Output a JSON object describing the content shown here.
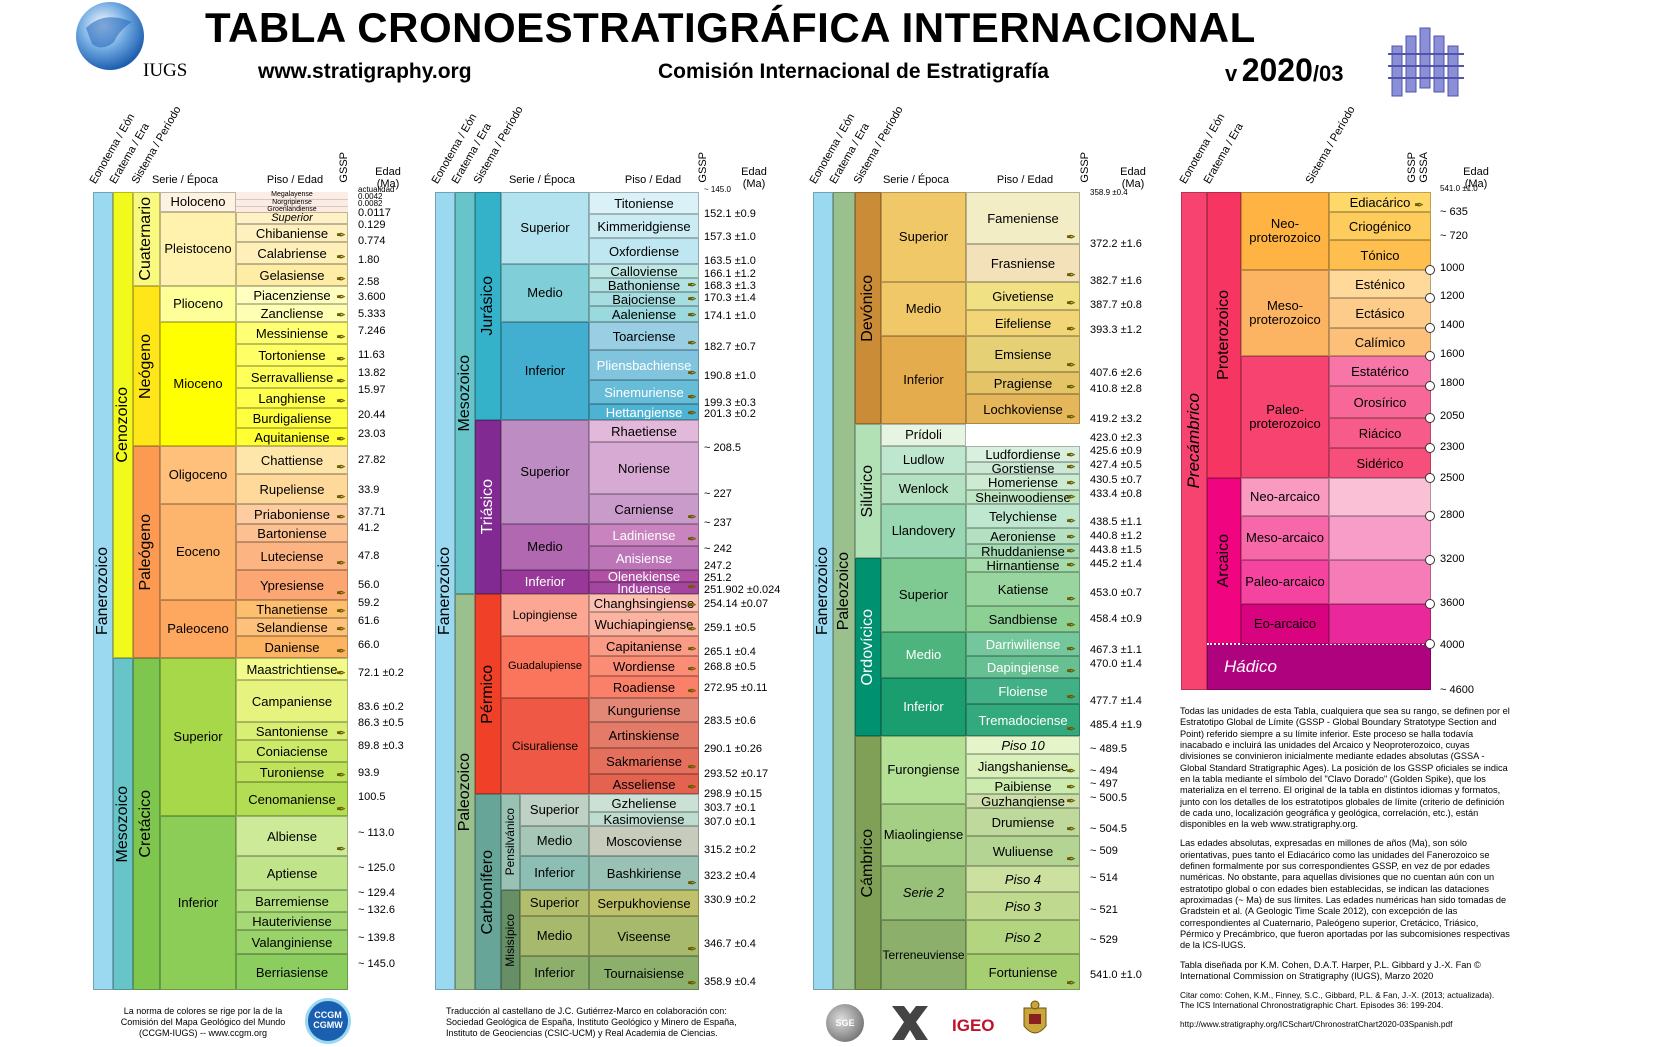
{
  "header": {
    "title": "TABLA CRONOESTRATIGRÁFICA INTERNACIONAL",
    "url": "www.stratigraphy.org",
    "commission": "Comisión Internacional de Estratigrafía",
    "version_prefix": "v",
    "version_year": "2020",
    "version_suffix": "/03",
    "logo_text": "IUGS"
  },
  "col_headers": {
    "eonothem": "Eonotema / Eón",
    "erathem": "Eratema / Era",
    "system": "Sistema / Período",
    "series": "Serie / Época",
    "stage": "Piso / Edad",
    "gssp": "GSSP",
    "gssa": "GSSA",
    "age": "Edad (Ma)"
  },
  "col1": {
    "eon": "Fanerozoico",
    "eras": [
      "Cenozoico",
      "Mesozoico"
    ],
    "systems": [
      "Cuaternario",
      "Neógeno",
      "Paleógeno",
      "Cretácico"
    ],
    "series": [
      "Holoceno",
      "Pleistoceno",
      "Plioceno",
      "Mioceno",
      "Oligoceno",
      "Eoceno",
      "Paleoceno",
      "Superior",
      "Inferior"
    ],
    "holocene_sub": [
      "Megalayense",
      "Norgripiense",
      "Groenlandiense"
    ],
    "stages": [
      "Superior",
      "Chibaniense",
      "Calabriense",
      "Gelasiense",
      "Piacenziense",
      "Zancliense",
      "Messiniense",
      "Tortoniense",
      "Serravalliense",
      "Langhiense",
      "Burdigaliense",
      "Aquitaniense",
      "Chattiense",
      "Rupeliense",
      "Priaboniense",
      "Bartoniense",
      "Luteciense",
      "Ypresiense",
      "Thanetiense",
      "Selandiense",
      "Daniense",
      "Maastrichtiense",
      "Campaniense",
      "Santoniense",
      "Coniaciense",
      "Turoniense",
      "Cenomaniense",
      "Albiense",
      "Aptiense",
      "Barremiense",
      "Hauteriviense",
      "Valanginiense",
      "Berriasiense"
    ],
    "ages": [
      "actualidad",
      "0.0042",
      "0.0082",
      "0.0117",
      "0.129",
      "0.774",
      "1.80",
      "2.58",
      "3.600",
      "5.333",
      "7.246",
      "11.63",
      "13.82",
      "15.97",
      "20.44",
      "23.03",
      "27.82",
      "33.9",
      "37.71",
      "41.2",
      "47.8",
      "56.0",
      "59.2",
      "61.6",
      "66.0",
      "72.1 ±0.2",
      "83.6 ±0.2",
      "86.3 ±0.5",
      "89.8 ±0.3",
      "93.9",
      "100.5",
      "~ 113.0",
      "~ 125.0",
      "~ 129.4",
      "~ 132.6",
      "~ 139.8",
      "~ 145.0"
    ]
  },
  "col2": {
    "eon": "Fanerozoico",
    "eras": [
      "Mesozoico",
      "Paleozoico"
    ],
    "systems": [
      "Jurásico",
      "Triásico",
      "Pérmico",
      "Carbonífero"
    ],
    "subsystems": [
      "Pensilvánico",
      "Misisípico"
    ],
    "series": [
      "Superior",
      "Medio",
      "Inferior",
      "Superior",
      "Medio",
      "Inferior",
      "Lopingiense",
      "Guadalupiense",
      "Cisuraliense",
      "Superior",
      "Medio",
      "Inferior",
      "Superior",
      "Medio",
      "Inferior"
    ],
    "stages": [
      "Titoniense",
      "Kimmeridgiense",
      "Oxfordiense",
      "Calloviense",
      "Bathoniense",
      "Bajociense",
      "Aaleniense",
      "Toarciense",
      "Pliensbachiense",
      "Sinemuriense",
      "Hettangiense",
      "Rhaetiense",
      "Noriense",
      "Carniense",
      "Ladiniense",
      "Anisiense",
      "Olenekiense",
      "Induense",
      "Changhsingiense",
      "Wuchiapingiense",
      "Capitaniense",
      "Wordiense",
      "Roadiense",
      "Kunguriense",
      "Artinskiense",
      "Sakmariense",
      "Asseliense",
      "Gzheliense",
      "Kasimoviense",
      "Moscoviense",
      "Bashkiriense",
      "Serpukhoviense",
      "Viseense",
      "Tournaisiense"
    ],
    "ages": [
      "~ 145.0",
      "152.1 ±0.9",
      "157.3 ±1.0",
      "163.5 ±1.0",
      "166.1 ±1.2",
      "168.3 ±1.3",
      "170.3 ±1.4",
      "174.1 ±1.0",
      "182.7 ±0.7",
      "190.8 ±1.0",
      "199.3 ±0.3",
      "201.3 ±0.2",
      "~ 208.5",
      "~ 227",
      "~ 237",
      "~ 242",
      "247.2",
      "251.2",
      "251.902 ±0.024",
      "254.14 ±0.07",
      "259.1 ±0.5",
      "265.1 ±0.4",
      "268.8 ±0.5",
      "272.95 ±0.11",
      "283.5 ±0.6",
      "290.1 ±0.26",
      "293.52 ±0.17",
      "298.9 ±0.15",
      "303.7 ±0.1",
      "307.0 ±0.1",
      "315.2 ±0.2",
      "323.2 ±0.4",
      "330.9 ±0.2",
      "346.7 ±0.4",
      "358.9 ±0.4"
    ]
  },
  "col3": {
    "eon": "Fanerozoico",
    "era": "Paleozoico",
    "systems": [
      "Devónico",
      "Silúrico",
      "Ordovícico",
      "Cámbrico"
    ],
    "series": [
      "Superior",
      "Medio",
      "Inferior",
      "Prídoli",
      "Ludlow",
      "Wenlock",
      "Llandovery",
      "Superior",
      "Medio",
      "Inferior",
      "Furongiense",
      "Miaolingiense",
      "Serie 2",
      "Terreneuviense"
    ],
    "stages": [
      "Fameniense",
      "Frasniense",
      "Givetiense",
      "Eifeliense",
      "Emsiense",
      "Pragiense",
      "Lochkoviense",
      "Ludfordiense",
      "Gorstiense",
      "Homeriense",
      "Sheinwoodiense",
      "Telychiense",
      "Aeroniense",
      "Rhuddaniense",
      "Hirnantiense",
      "Katiense",
      "Sandbiense",
      "Darriwiliense",
      "Dapingiense",
      "Floiense",
      "Tremadociense",
      "Piso 10",
      "Jiangshaniense",
      "Paibiense",
      "Guzhangiense",
      "Drumiense",
      "Wuliuense",
      "Piso 4",
      "Piso 3",
      "Piso 2",
      "Fortuniense"
    ],
    "ages": [
      "358.9 ±0.4",
      "372.2 ±1.6",
      "382.7 ±1.6",
      "387.7 ±0.8",
      "393.3 ±1.2",
      "407.6 ±2.6",
      "410.8 ±2.8",
      "419.2 ±3.2",
      "423.0 ±2.3",
      "425.6 ±0.9",
      "427.4 ±0.5",
      "430.5 ±0.7",
      "433.4 ±0.8",
      "438.5 ±1.1",
      "440.8 ±1.2",
      "443.8 ±1.5",
      "445.2 ±1.4",
      "453.0 ±0.7",
      "458.4 ±0.9",
      "467.3 ±1.1",
      "470.0 ±1.4",
      "477.7 ±1.4",
      "485.4 ±1.9",
      "~ 489.5",
      "~ 494",
      "~ 497",
      "~ 500.5",
      "~ 504.5",
      "~ 509",
      "~ 514",
      "~ 521",
      "~ 529",
      "541.0 ±1.0"
    ]
  },
  "col4": {
    "supereon": "Precámbrico",
    "eons": [
      "Proterozoico",
      "Arcaico",
      "Hádico"
    ],
    "eras": [
      "Neo-proterozoico",
      "Meso-proterozoico",
      "Paleo-proterozoico",
      "Neo-arcaico",
      "Meso-arcaico",
      "Paleo-arcaico",
      "Eo-arcaico"
    ],
    "systems": [
      "Ediacárico",
      "Criogénico",
      "Tónico",
      "Esténico",
      "Ectásico",
      "Calímico",
      "Estatérico",
      "Orosírico",
      "Riácico",
      "Sidérico"
    ],
    "ages": [
      "541.0 ±1.0",
      "~ 635",
      "~ 720",
      "1000",
      "1200",
      "1400",
      "1600",
      "1800",
      "2050",
      "2300",
      "2500",
      "2800",
      "3200",
      "3600",
      "4000",
      "~ 4600"
    ]
  },
  "notes": {
    "p1": "Todas las unidades de esta Tabla, cualquiera que sea su rango, se definen por el Estratotipo Global de Límite (GSSP - Global Boundary Stratotype Section and Point) referido siempre a su límite inferior. Este proceso se halla todavía inacabado e incluirá las unidades del Arcaico y Neoproterozoico, cuyas divisiones se convinieron inicialmente mediante edades absolutas (GSSA - Global Standard Stratigraphic Ages). La posición de los GSSP oficiales se indica en la tabla mediante el símbolo del \"Clavo Dorado\" (Golden Spike), que los materializa en el terreno. El original de la tabla en distintos idiomas y formatos, junto con los detalles de los estratotipos globales de límite (criterio de definición de cada uno, localización geográfica y geológica, correlación, etc.), están disponibles en la web www.stratigraphy.org.",
    "p2": "Las edades absolutas, expresadas en millones de años (Ma), son sólo orientativas, pues tanto el Ediacárico como las unidades del Fanerozoico se definen formalmente por sus correspondientes GSSP, en vez de por edades numéricas. No obstante, para aquellas divisiones que no cuentan aún con un estratotipo global o con edades bien establecidas, se indican las dataciones aproximadas (~ Ma) de sus límites. Las edades numéricas han sido tomadas de Gradstein et al. (A Geologic Time Scale 2012), con excepción de las correspondientes al Cuaternario, Paleógeno superior, Cretácico, Triásico, Pérmico y Precámbrico, que fueron aportadas por las subcomisiones respectivas de la ICS-IUGS.",
    "p3": "Tabla diseñada por K.M. Cohen, D.A.T. Harper, P.L. Gibbard y J.-X. Fan © International Commission on Stratigraphy (IUGS), Marzo 2020",
    "p4": "Citar como: Cohen, K.M., Finney, S.C., Gibbard, P.L. & Fan, J.-X. (2013; actualizada). The ICS International Chronostratigraphic Chart. Episodes 36: 199-204.",
    "p5": "http://www.stratigraphy.org/ICSchart/ChronostratChart2020-03Spanish.pdf"
  },
  "footer": {
    "f1": "La norma de colores se rige por la de la Comisión del Mapa Geológico del Mundo (CCGM-IUGS) -- www.ccgm.org",
    "f2": "Traducción al castellano de J.C. Gutiérrez-Marco en colaboración con: Sociedad Geológica de España, Instituto Geológico y Minero de España, Instituto de Geociencias (CSIC-UCM) y Real Academia de Ciencias.",
    "ccgm": "CCGM CGMW",
    "sge": "SGE",
    "igeo": "IGEO"
  },
  "colors": {
    "phanerozoic": "#9ad9f0",
    "cenozoic": "#f2f91d",
    "mesozoic": "#67c5ca",
    "paleozoic": "#99c08d",
    "proterozoic": "#f73563",
    "archean": "#f0047f",
    "hadean": "#ae027e"
  }
}
